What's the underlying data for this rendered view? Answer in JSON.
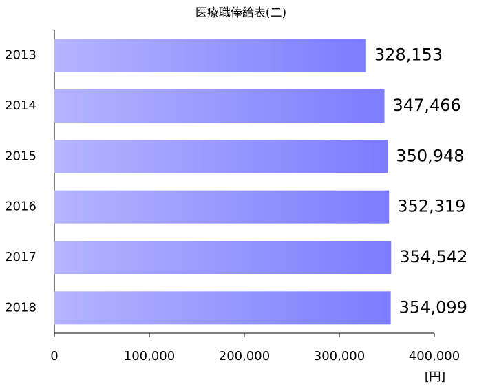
{
  "chart_data": {
    "type": "barh",
    "title": "医療職俸給表(二)",
    "categories": [
      "2013",
      "2014",
      "2015",
      "2016",
      "2017",
      "2018"
    ],
    "values": [
      328153,
      347466,
      350948,
      352319,
      354542,
      354099
    ],
    "value_labels": [
      "328,153",
      "347,466",
      "350,948",
      "352,319",
      "354,542",
      "354,099"
    ],
    "gradient": [
      "#b4b4ff",
      "#7c7cff"
    ],
    "xlim": [
      0,
      400000
    ],
    "xticks": [
      0,
      {
        "value": 100000,
        "label": "100,000"
      },
      {
        "value": 200000,
        "label": "200,000"
      },
      {
        "value": 300000,
        "label": "300,000"
      },
      {
        "value": 400000,
        "label": "400,000"
      }
    ],
    "xlabel": "[円]"
  }
}
